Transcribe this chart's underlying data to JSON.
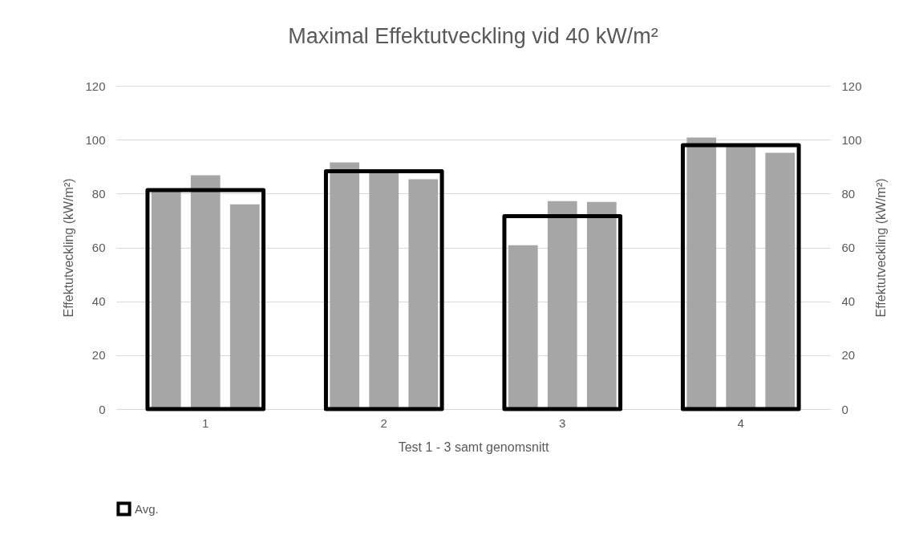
{
  "chart_data": {
    "type": "bar",
    "title": "Maximal Effektutveckling vid 40 kW/m²",
    "xlabel": "Test 1 - 3 samt genomsnitt",
    "ylabel": "Effektutveckling (kW/m²)",
    "y2label": "Effektutveckling (kW/m²)",
    "categories": [
      "1",
      "2",
      "3",
      "4"
    ],
    "series": [
      {
        "color": "#a6a6a6",
        "values": [
          80.8,
          91.6,
          60.8,
          100.8
        ]
      },
      {
        "color": "#a6a6a6",
        "values": [
          86.8,
          88.0,
          77.2,
          98.1
        ]
      },
      {
        "color": "#a6a6a6",
        "values": [
          76.0,
          85.3,
          76.9,
          95.1
        ]
      },
      {
        "name": "Avg.",
        "color": "#000000",
        "axis": "y2",
        "values": [
          81.3,
          88.3,
          71.6,
          98.0
        ]
      }
    ],
    "ylim": [
      0,
      120
    ],
    "yticks": [
      0,
      20,
      40,
      60,
      80,
      100,
      120
    ],
    "y2lim": [
      0,
      120
    ],
    "y2ticks": [
      0,
      20,
      40,
      60,
      80,
      100,
      120
    ],
    "grid": "y",
    "legend": "bottom"
  }
}
